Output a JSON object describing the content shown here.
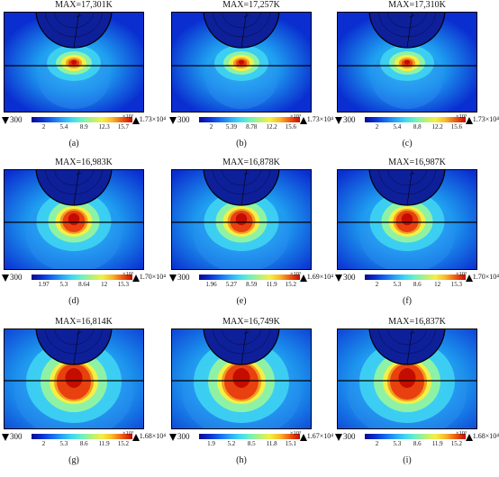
{
  "panels": [
    {
      "max_label": "MAX=17,301K",
      "caption": "(a)",
      "min": "300",
      "max_value": "1.73×10⁴",
      "multiplier": "×10³",
      "ticks": [
        "2",
        "5.4",
        "8.9",
        "12.3",
        "15.7"
      ],
      "hot_fraction": 0.0
    },
    {
      "max_label": "MAX=17,257K",
      "caption": "(b)",
      "min": "300",
      "max_value": "1.73×10⁴",
      "multiplier": "×10³",
      "ticks": [
        "2",
        "5.39",
        "8.78",
        "12.2",
        "15.6"
      ],
      "hot_fraction": 0.0
    },
    {
      "max_label": "MAX=17,310K",
      "caption": "(c)",
      "min": "300",
      "max_value": "1.73×10⁴",
      "multiplier": "×10³",
      "ticks": [
        "2",
        "5.4",
        "8.8",
        "12.2",
        "15.6"
      ],
      "hot_fraction": 0.0
    },
    {
      "max_label": "MAX=16,983K",
      "caption": "(d)",
      "min": "300",
      "max_value": "1.70×10⁴",
      "multiplier": "×10³",
      "ticks": [
        "1.97",
        "5.3",
        "8.64",
        "12",
        "15.3"
      ],
      "hot_fraction": 0.5
    },
    {
      "max_label": "MAX=16,878K",
      "caption": "(e)",
      "min": "300",
      "max_value": "1.69×10⁴",
      "multiplier": "×10³",
      "ticks": [
        "1.96",
        "5.27",
        "8.59",
        "11.9",
        "15.2"
      ],
      "hot_fraction": 0.5
    },
    {
      "max_label": "MAX=16,987K",
      "caption": "(f)",
      "min": "300",
      "max_value": "1.70×10⁴",
      "multiplier": "×10³",
      "ticks": [
        "2",
        "5.3",
        "8.6",
        "12",
        "15.3"
      ],
      "hot_fraction": 0.5
    },
    {
      "max_label": "MAX=16,814K",
      "caption": "(g)",
      "min": "300",
      "max_value": "1.68×10⁴",
      "multiplier": "×10³",
      "ticks": [
        "2",
        "5.3",
        "8.6",
        "11.9",
        "15.2"
      ],
      "hot_fraction": 1.0
    },
    {
      "max_label": "MAX=16,749K",
      "caption": "(h)",
      "min": "300",
      "max_value": "1.67×10⁴",
      "multiplier": "×10³",
      "ticks": [
        "1.9",
        "5.2",
        "8.5",
        "11.8",
        "15.1"
      ],
      "hot_fraction": 1.0
    },
    {
      "max_label": "MAX=16,837K",
      "caption": "(i)",
      "min": "300",
      "max_value": "1.68×10⁴",
      "multiplier": "×10³",
      "ticks": [
        "2",
        "5.3",
        "8.6",
        "11.9",
        "15.2"
      ],
      "hot_fraction": 1.0
    }
  ],
  "colors": {
    "field_low": "#0a2ed0",
    "field_mid": "#3fd7f2",
    "field_high": "#f2f046",
    "field_peak": "#c40c00",
    "outline": "#000000"
  }
}
